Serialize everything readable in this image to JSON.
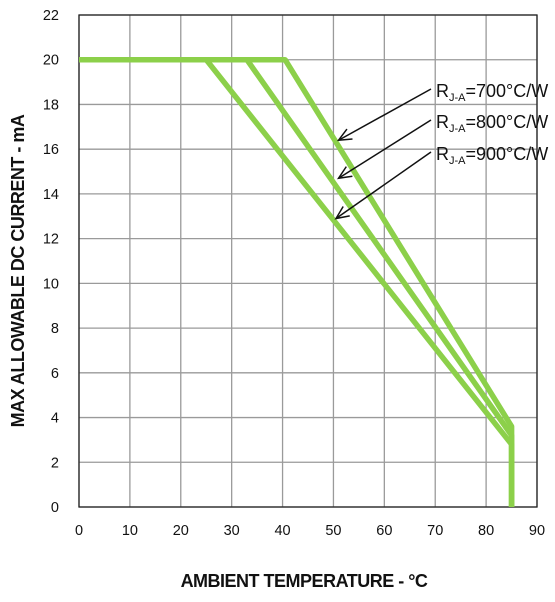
{
  "chart_data": {
    "type": "line",
    "xlabel": "AMBIENT TEMPERATURE - °C",
    "ylabel": "MAX ALLOWABLE DC CURRENT - mA",
    "xlim": [
      0,
      90
    ],
    "ylim": [
      0,
      22
    ],
    "xticks": [
      0,
      10,
      20,
      30,
      40,
      50,
      60,
      70,
      80,
      90
    ],
    "yticks": [
      0,
      2,
      4,
      6,
      8,
      10,
      12,
      14,
      16,
      18,
      20,
      22
    ],
    "grid": true,
    "series": [
      {
        "name": "R",
        "sub": "J-A",
        "value": "=700°C/W",
        "points": [
          [
            0,
            20
          ],
          [
            40.5,
            20
          ],
          [
            85,
            3.6
          ],
          [
            85,
            0
          ]
        ],
        "arrow_to": [
          51,
          16.4
        ]
      },
      {
        "name": "R",
        "sub": "J-A",
        "value": "=800°C/W",
        "points": [
          [
            0,
            20
          ],
          [
            33,
            20
          ],
          [
            85,
            3.2
          ],
          [
            85,
            0
          ]
        ],
        "arrow_to": [
          51,
          14.7
        ]
      },
      {
        "name": "R",
        "sub": "J-A",
        "value": "=900°C/W",
        "points": [
          [
            0,
            20
          ],
          [
            25,
            20
          ],
          [
            85,
            2.8
          ],
          [
            85,
            0
          ]
        ],
        "arrow_to": [
          50.5,
          12.9
        ]
      }
    ],
    "line_color": "#8cd04a"
  }
}
